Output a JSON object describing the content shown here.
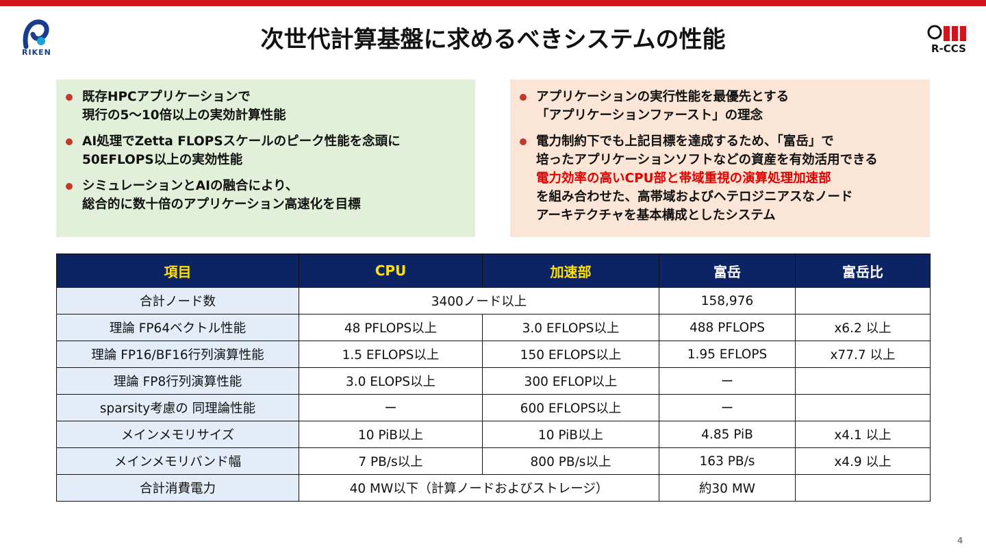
{
  "header": {
    "title": "次世代計算基盤に求めるべきシステムの性能",
    "left_logo_text": "RIKEN",
    "right_logo_text": "R-CCS",
    "accent_color": "#d2141c"
  },
  "left_panel": {
    "bullets": [
      {
        "lines": [
          "既存HPCアプリケーションで",
          "現行の5～10倍以上の実効計算性能"
        ]
      },
      {
        "lines": [
          "AI処理でZetta FLOPSスケールのピーク性能を念頭に",
          "50EFLOPS以上の実効性能"
        ]
      },
      {
        "lines": [
          "シミュレーションとAIの融合により、",
          "総合的に数十倍のアプリケーション高速化を目標"
        ]
      }
    ]
  },
  "right_panel": {
    "bullets": [
      {
        "lines": [
          "アプリケーションの実行性能を最優先とする",
          "「アプリケーションファースト」の理念"
        ]
      },
      {
        "lines": [
          "電力制約下でも上記目標を達成するため、「富岳」で",
          "培ったアプリケーションソフトなどの資産を有効活用できる",
          "電力効率の高いCPU部と帯域重視の演算処理加速部",
          "を組み合わせた、高帯域およびヘテロジニアスなノード",
          "アーキテクチャを基本構成としたシステム"
        ]
      }
    ]
  },
  "table": {
    "headers": [
      "項目",
      "CPU",
      "加速部",
      "富岳",
      "富岳比"
    ],
    "rows": [
      {
        "label": "合計ノード数",
        "combined": "3400ノード以上",
        "fugaku": "158,976",
        "ratio": ""
      },
      {
        "label": "理論 FP64ベクトル性能",
        "cpu": "48 PFLOPS以上",
        "acc": "3.0 EFLOPS以上",
        "fugaku": "488 PFLOPS",
        "ratio": "x6.2 以上"
      },
      {
        "label": "理論 FP16/BF16行列演算性能",
        "cpu": "1.5 EFLOPS以上",
        "acc": "150 EFLOPS以上",
        "fugaku": "1.95 EFLOPS",
        "ratio": "x77.7 以上"
      },
      {
        "label": "理論 FP8行列演算性能",
        "cpu": "3.0 ELOPS以上",
        "acc": "300 EFLOP以上",
        "fugaku": "ー",
        "ratio": ""
      },
      {
        "label": "sparsity考慮の 同理論性能",
        "cpu": "ー",
        "acc": "600 EFLOPS以上",
        "fugaku": "ー",
        "ratio": ""
      },
      {
        "label": "メインメモリサイズ",
        "cpu": "10 PiB以上",
        "acc": "10 PiB以上",
        "fugaku": "4.85 PiB",
        "ratio": "x4.1 以上"
      },
      {
        "label": "メインメモリバンド幅",
        "cpu": "7 PB/s以上",
        "acc": "800 PB/s以上",
        "fugaku": "163 PB/s",
        "ratio": "x4.9 以上"
      },
      {
        "label": "合計消費電力",
        "combined": "40 MW以下（計算ノードおよびストレージ）",
        "fugaku": "約30 MW",
        "ratio": ""
      }
    ]
  },
  "footer": {
    "page_number": "4"
  }
}
